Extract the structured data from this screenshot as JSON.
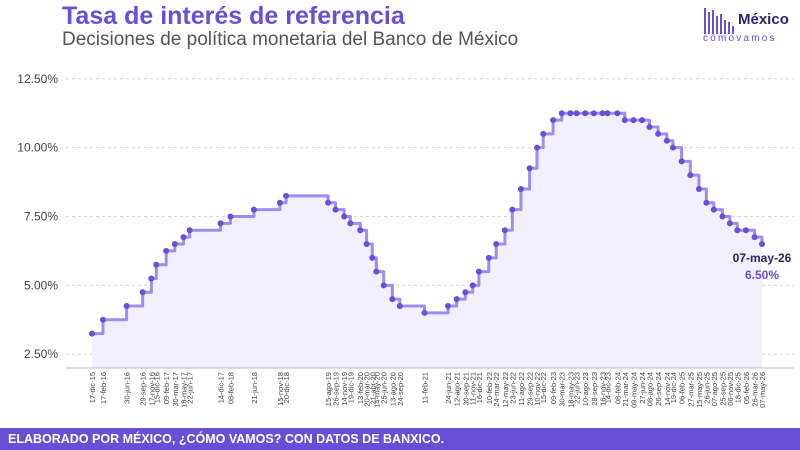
{
  "header": {
    "title": "Tasa de interés de referencia",
    "subtitle": "Decisiones de política monetaria del Banco de México"
  },
  "logo": {
    "name": "México",
    "tagline": "cómovamos"
  },
  "footer": {
    "text": "ELABORADO POR MÉXICO, ¿CÓMO VAMOS? CON DATOS DE BANXICO."
  },
  "colors": {
    "accent": "#6a4fd6",
    "line": "#a08cf0",
    "marker": "#6a4fd6",
    "dark": "#2d1f6e"
  },
  "chart_data": {
    "type": "line",
    "step": true,
    "title": "Tasa de interés de referencia",
    "subtitle": "Decisiones de política monetaria del Banco de México",
    "ylim": [
      2.0,
      13.0
    ],
    "yticks": [
      "2.50%",
      "5.00%",
      "7.50%",
      "10.00%",
      "12.50%"
    ],
    "ytick_values": [
      2.5,
      5.0,
      7.5,
      10.0,
      12.5
    ],
    "grid": "horizontal",
    "x_date_range": [
      "2015-12-17",
      "2026-05-07"
    ],
    "dates": [
      "2015-12-17",
      "2016-02-17",
      "2016-06-30",
      "2016-09-29",
      "2016-11-17",
      "2016-12-15",
      "2017-02-09",
      "2017-03-30",
      "2017-05-18",
      "2017-06-22",
      "2017-12-14",
      "2018-02-08",
      "2018-06-21",
      "2018-11-15",
      "2018-12-20",
      "2019-08-15",
      "2019-09-26",
      "2019-11-14",
      "2019-12-19",
      "2020-02-13",
      "2020-03-20",
      "2020-04-21",
      "2020-05-14",
      "2020-06-25",
      "2020-08-13",
      "2020-09-24",
      "2021-02-11",
      "2021-06-24",
      "2021-08-12",
      "2021-09-30",
      "2021-11-11",
      "2021-12-16",
      "2022-02-10",
      "2022-03-24",
      "2022-05-12",
      "2022-06-23",
      "2022-08-11",
      "2022-09-29",
      "2022-11-10",
      "2022-12-15",
      "2023-02-09",
      "2023-03-30",
      "2023-05-18",
      "2023-06-22",
      "2023-08-10",
      "2023-09-28",
      "2023-11-16",
      "2023-12-14",
      "2024-02-08",
      "2024-03-21",
      "2024-05-09",
      "2024-06-27",
      "2024-08-08",
      "2024-09-26",
      "2024-11-14",
      "2024-12-19",
      "2025-02-06",
      "2025-03-27",
      "2025-05-15",
      "2025-06-26",
      "2025-08-07",
      "2025-09-25",
      "2025-11-06",
      "2025-12-18",
      "2026-02-05",
      "2026-03-26",
      "2026-05-07"
    ],
    "values": [
      3.25,
      3.75,
      4.25,
      4.75,
      5.25,
      5.75,
      6.25,
      6.5,
      6.75,
      7.0,
      7.25,
      7.5,
      7.75,
      8.0,
      8.25,
      8.0,
      7.75,
      7.5,
      7.25,
      7.0,
      6.5,
      6.0,
      5.5,
      5.0,
      4.5,
      4.25,
      4.0,
      4.25,
      4.5,
      4.75,
      5.0,
      5.5,
      6.0,
      6.5,
      7.0,
      7.75,
      8.5,
      9.25,
      10.0,
      10.5,
      11.0,
      11.25,
      11.25,
      11.25,
      11.25,
      11.25,
      11.25,
      11.25,
      11.25,
      11.0,
      11.0,
      11.0,
      10.75,
      10.5,
      10.25,
      10.0,
      9.5,
      9.0,
      8.5,
      8.0,
      7.75,
      7.5,
      7.25,
      7.0,
      7.0,
      6.75,
      6.5
    ],
    "tick_labels": [
      "17-dic-15",
      "17-feb-16",
      "30-jun-16",
      "29-sep-16",
      "17-nov-16",
      "15-dic-16",
      "09-feb-17",
      "30-mar-17",
      "18-may-17",
      "22-jun-17",
      "14-dic-17",
      "08-feb-18",
      "21-jun-18",
      "15-nov-18",
      "20-dic-18",
      "15-ago-19",
      "26-sep-19",
      "14-nov-19",
      "19-dic-19",
      "13-feb-20",
      "20-mar-20",
      "21-abr-20",
      "14-may-20",
      "25-jun-20",
      "13-ago-20",
      "24-sep-20",
      "11-feb-21",
      "24-jun-21",
      "12-ago-21",
      "30-sep-21",
      "11-nov-21",
      "16-dic-21",
      "10-feb-22",
      "24-mar-22",
      "12-may-22",
      "23-jun-22",
      "11-ago-22",
      "29-sep-22",
      "10-nov-22",
      "15-dic-22",
      "09-feb-23",
      "30-mar-23",
      "18-may-23",
      "22-jun-23",
      "10-ago-23",
      "28-sep-23",
      "16-nov-23",
      "14-dic-23",
      "08-feb-24",
      "21-mar-24",
      "09-may-24",
      "27-jun-24",
      "08-ago-24",
      "26-sep-24",
      "14-nov-24",
      "19-dic-24",
      "06-feb-25",
      "27-mar-25",
      "15-may-25",
      "26-jun-25",
      "07-ago-25",
      "25-sep-25",
      "06-nov-25",
      "18-dic-25",
      "05-feb-26",
      "26-mar-26",
      "07-may-26"
    ],
    "annotation": {
      "date_label": "07-may-26",
      "value_label": "6.50%"
    }
  }
}
